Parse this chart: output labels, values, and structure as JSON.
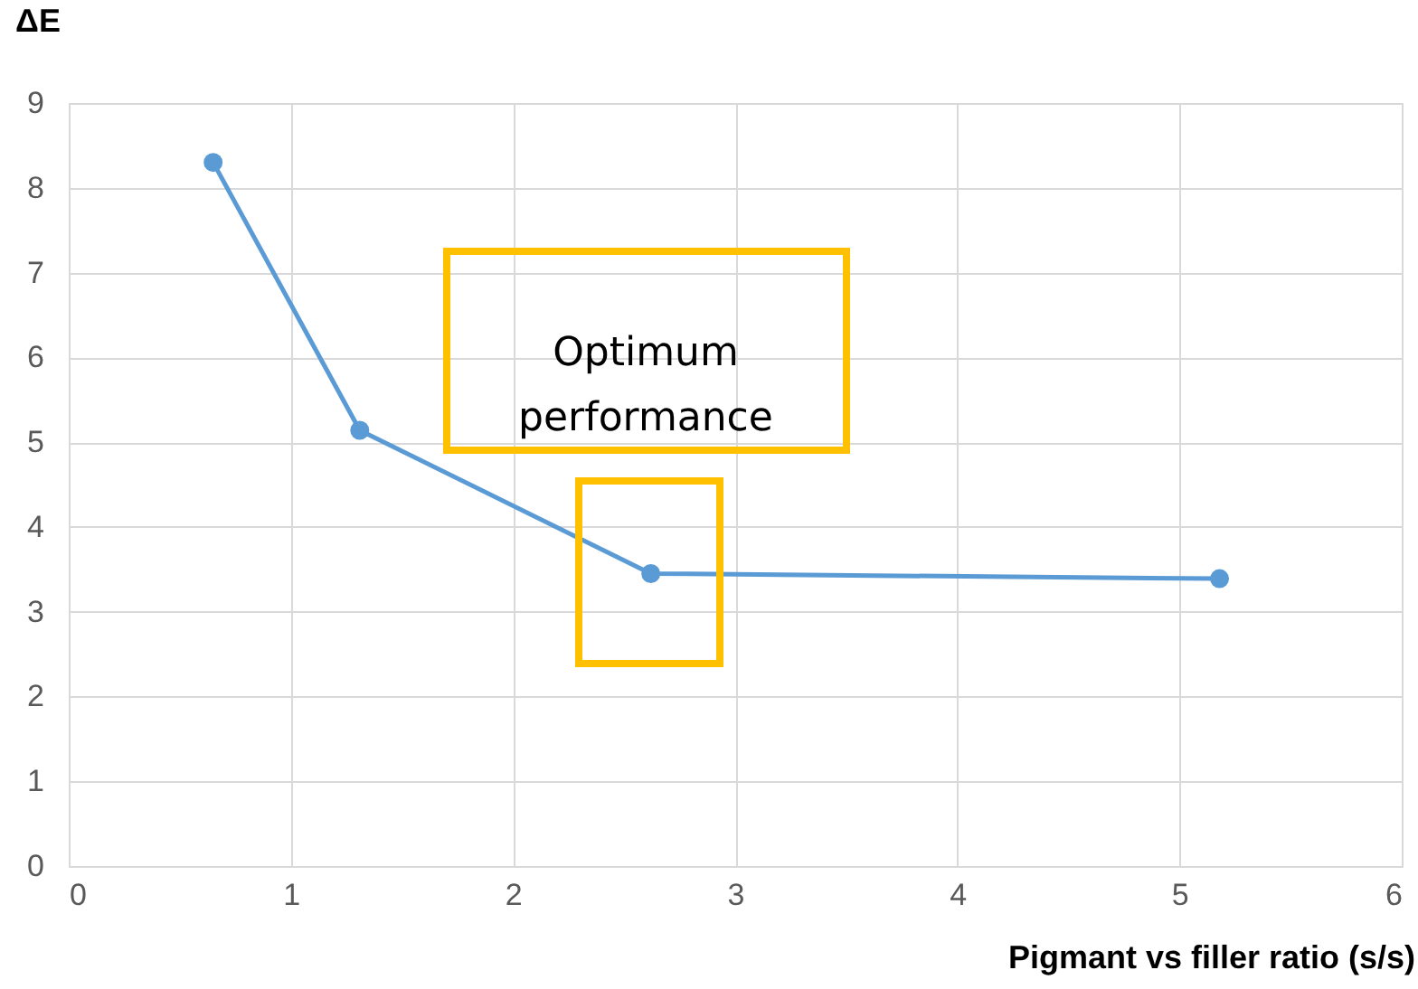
{
  "chart_data": {
    "type": "line",
    "ylabel": "ΔE",
    "xlabel": "Pigmant vs filler ratio (s/s)",
    "x": [
      0.65,
      1.31,
      2.62,
      5.18
    ],
    "series": [
      {
        "color": "#5b9bd5",
        "values": [
          8.3,
          5.14,
          3.45,
          3.39
        ]
      }
    ],
    "xlim": [
      0,
      6
    ],
    "xticks": [
      0,
      1,
      2,
      3,
      4,
      5,
      6
    ],
    "ylim": [
      0,
      9
    ],
    "yticks": [
      0,
      1,
      2,
      3,
      4,
      5,
      6,
      7,
      8,
      9
    ],
    "grid": true,
    "marker": "circle",
    "line_style": "solid",
    "annotations": [
      "Optimum performance"
    ]
  }
}
